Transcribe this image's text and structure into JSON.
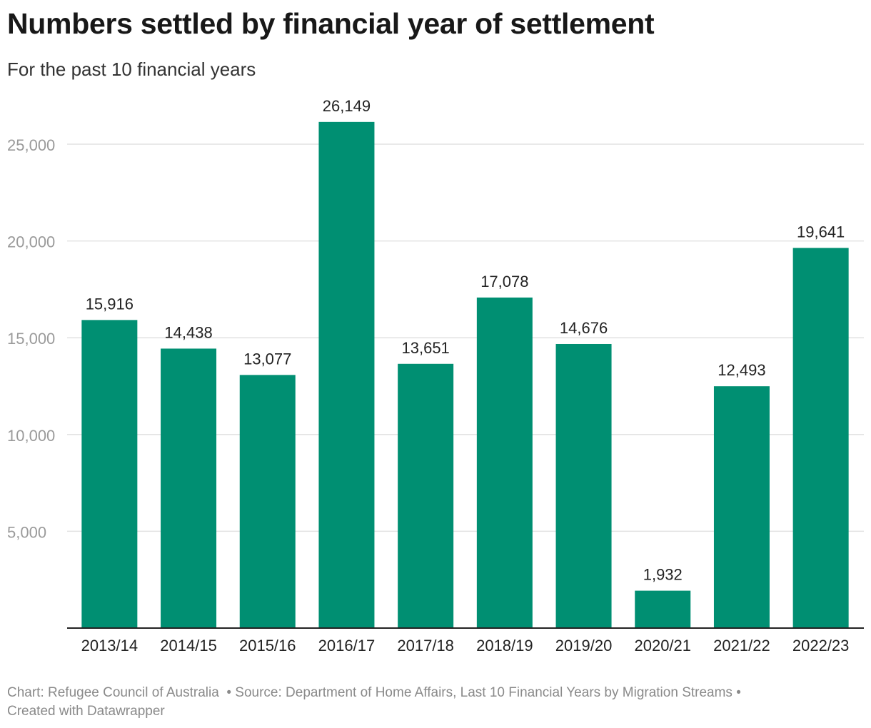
{
  "header": {
    "title": "Numbers settled by financial year of settlement",
    "subtitle": "For the past 10 financial years"
  },
  "chart_data": {
    "type": "bar",
    "title": "Numbers settled by financial year of settlement",
    "subtitle": "For the past 10 financial years",
    "categories": [
      "2013/14",
      "2014/15",
      "2015/16",
      "2016/17",
      "2017/18",
      "2018/19",
      "2019/20",
      "2020/21",
      "2021/22",
      "2022/23"
    ],
    "values": [
      15916,
      14438,
      13077,
      26149,
      13651,
      17078,
      14676,
      1932,
      12493,
      19641
    ],
    "value_labels": [
      "15,916",
      "14,438",
      "13,077",
      "26,149",
      "13,651",
      "17,078",
      "14,676",
      "1,932",
      "12,493",
      "19,641"
    ],
    "y_ticks": [
      5000,
      10000,
      15000,
      20000,
      25000
    ],
    "y_tick_labels": [
      "5,000",
      "10,000",
      "15,000",
      "20,000",
      "25,000"
    ],
    "ylim": [
      0,
      27000
    ],
    "xlabel": "",
    "ylabel": "",
    "grid": true,
    "bar_color": "#008f72"
  },
  "footer": {
    "chart_credit": "Chart: Refugee Council of Australia",
    "source": "• Source: Department of Home Affairs, Last 10 Financial Years by Migration Streams •",
    "created": "Created with Datawrapper"
  }
}
